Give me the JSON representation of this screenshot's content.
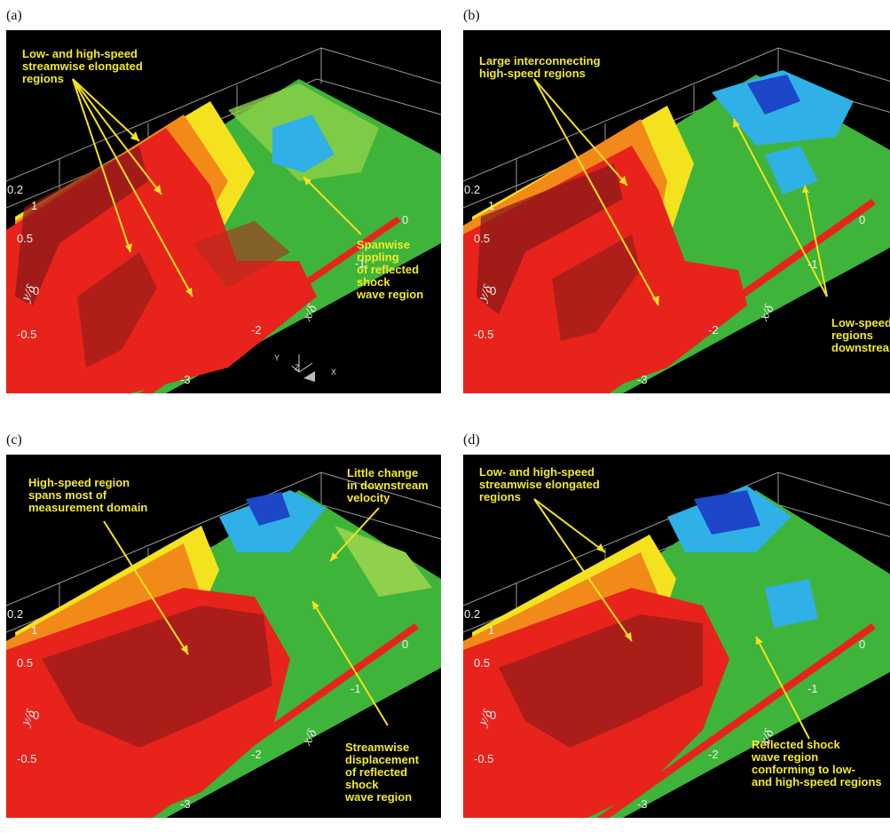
{
  "figure": {
    "panels": [
      {
        "id": "a",
        "label": "(a)",
        "annotations": [
          "Low- and high-speed\nstreamwise elongated\nregions",
          "Spanwise rippling\nof reflected shock\nwave region"
        ],
        "show_triad": true
      },
      {
        "id": "b",
        "label": "(b)",
        "annotations": [
          "Large interconnecting\nhigh-speed regions",
          "Low-speed\nregions\ndownstream"
        ],
        "show_triad": false
      },
      {
        "id": "c",
        "label": "(c)",
        "annotations": [
          "High-speed region\nspans most of\nmeasurement domain",
          "Little change\nin downstream\nvelocity",
          "Streamwise\ndisplacement\nof reflected shock\nwave region"
        ],
        "show_triad": false
      },
      {
        "id": "d",
        "label": "(d)",
        "annotations": [
          "Low- and high-speed\nstreamwise elongated\nregions",
          "Reflected shock\nwave region\nconforming to low-\nand high-speed regions"
        ],
        "show_triad": false
      }
    ],
    "axes": {
      "y_label": "y/δ",
      "x_label": "x/δ",
      "z_tick": "0.2",
      "y_ticks": [
        "1",
        "0.5",
        "0",
        "-0.5"
      ],
      "x_ticks": [
        "0",
        "-1",
        "-2",
        "-3"
      ],
      "triad": {
        "y": "Y",
        "z": "Z",
        "x": "X"
      }
    },
    "colors": {
      "high_speed": "#e8231c",
      "dark_red": "#8a1a18",
      "orange": "#f28a1a",
      "yellow": "#f5e21e",
      "green": "#3fb43a",
      "light_green": "#8fd14a",
      "cyan": "#2fb0e6",
      "blue": "#1d46c9",
      "annotation": "#f2ea2a"
    }
  }
}
